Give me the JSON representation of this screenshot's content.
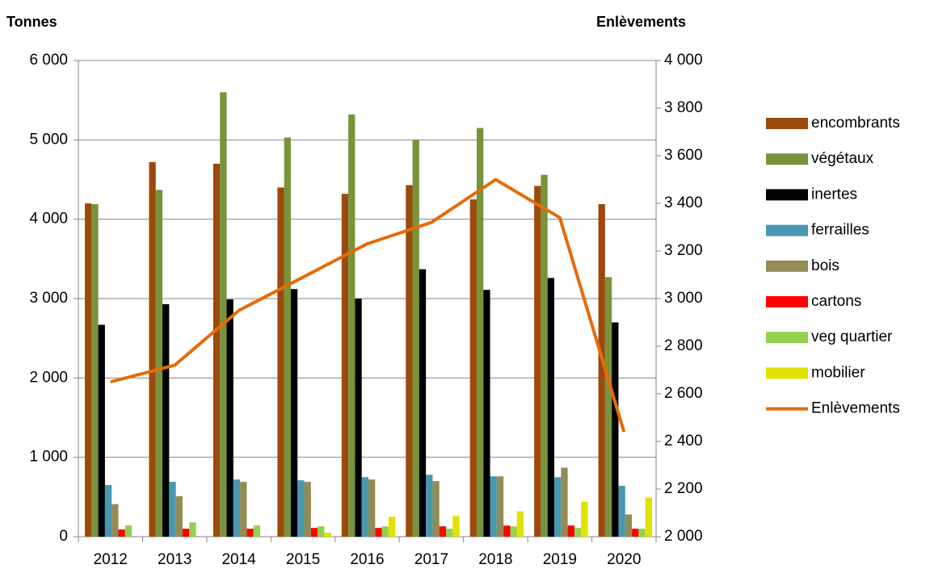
{
  "chart_data": {
    "type": "bar",
    "y_label": "Tonnes",
    "y2_label": "Enlèvements",
    "categories": [
      "2012",
      "2013",
      "2014",
      "2015",
      "2016",
      "2017",
      "2018",
      "2019",
      "2020"
    ],
    "series": [
      {
        "name": "encombrants",
        "color": "#9c4a0c",
        "values": [
          4200,
          4720,
          4700,
          4400,
          4320,
          4430,
          4250,
          4420,
          4190
        ]
      },
      {
        "name": "végétaux",
        "color": "#77933c",
        "values": [
          4190,
          4370,
          5600,
          5030,
          5320,
          5000,
          5150,
          4560,
          3270
        ]
      },
      {
        "name": "inertes",
        "color": "#000000",
        "values": [
          2670,
          2930,
          2990,
          3120,
          3000,
          3370,
          3110,
          3260,
          2700
        ]
      },
      {
        "name": "ferrailles",
        "color": "#4798b0",
        "values": [
          650,
          690,
          720,
          710,
          750,
          780,
          760,
          750,
          640
        ]
      },
      {
        "name": "bois",
        "color": "#948a54",
        "values": [
          410,
          510,
          690,
          690,
          720,
          700,
          760,
          870,
          280
        ]
      },
      {
        "name": "cartons",
        "color": "#ff0000",
        "values": [
          90,
          100,
          100,
          110,
          110,
          130,
          140,
          140,
          100
        ]
      },
      {
        "name": "veg quartier",
        "color": "#92d050",
        "values": [
          140,
          180,
          140,
          130,
          130,
          100,
          130,
          110,
          100
        ]
      },
      {
        "name": "mobilier",
        "color": "#e2e200",
        "values": [
          null,
          null,
          null,
          50,
          250,
          260,
          320,
          440,
          490
        ]
      },
      {
        "name": "Enlèvements",
        "color": "#e46c0a",
        "type": "line",
        "axis": "y2",
        "values": [
          2650,
          2720,
          2950,
          3090,
          3230,
          3320,
          3500,
          3340,
          2440
        ]
      }
    ],
    "ylim": [
      0,
      6000
    ],
    "yticks": [
      0,
      {
        "value": 1000,
        "label": "1 000"
      },
      {
        "value": 2000,
        "label": "2 000"
      },
      {
        "value": 3000,
        "label": "3 000"
      },
      {
        "value": 4000,
        "label": "4 000"
      },
      {
        "value": 5000,
        "label": "5 000"
      },
      {
        "value": 6000,
        "label": "6 000"
      }
    ],
    "y2lim": [
      2000,
      4000
    ],
    "y2ticks": [
      {
        "value": 2000,
        "label": "2 000"
      },
      {
        "value": 2200,
        "label": "2 200"
      },
      {
        "value": 2400,
        "label": "2 400"
      },
      {
        "value": 2600,
        "label": "2 600"
      },
      {
        "value": 2800,
        "label": "2 800"
      },
      {
        "value": 3000,
        "label": "3 000"
      },
      {
        "value": 3200,
        "label": "3 200"
      },
      {
        "value": 3400,
        "label": "3 400"
      },
      {
        "value": 3600,
        "label": "3 600"
      },
      {
        "value": 3800,
        "label": "3 800"
      },
      {
        "value": 4000,
        "label": "4 000"
      }
    ],
    "grid": true,
    "legend": "right"
  }
}
